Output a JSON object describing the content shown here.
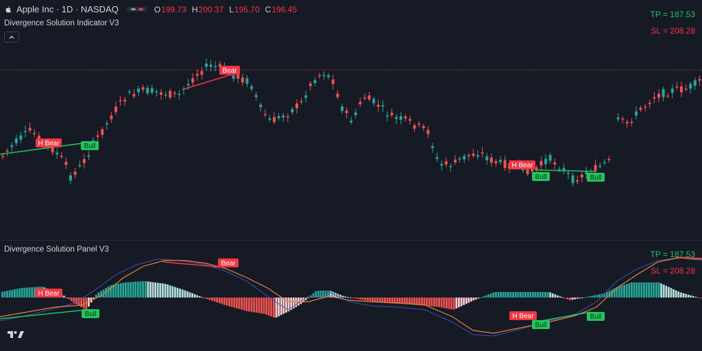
{
  "header": {
    "symbol": "Apple Inc · 1D · NASDAQ",
    "ohlc": [
      {
        "key": "O",
        "value": "199.73"
      },
      {
        "key": "H",
        "value": "200.37"
      },
      {
        "key": "L",
        "value": "195.70"
      },
      {
        "key": "C",
        "value": "196.45"
      }
    ]
  },
  "indicator": {
    "title": "Divergence Solution Indicator V3"
  },
  "panel": {
    "title": "Divergence Solution Panel V3"
  },
  "levels": {
    "tp": "TP = 187.53",
    "sl": "SL = 208.28"
  },
  "labels": {
    "bear": "Bear",
    "h_bear": "H Bear",
    "bull": "Bull"
  },
  "colors": {
    "bg": "#161a25",
    "up": "#26a69a",
    "down": "#ef5350",
    "bull": "#22c55e",
    "bear": "#f23645"
  },
  "icons": {
    "logo": "apple-logo-icon",
    "collapse": "chevron-up-icon",
    "brand": "tradingview-logo-icon"
  }
}
